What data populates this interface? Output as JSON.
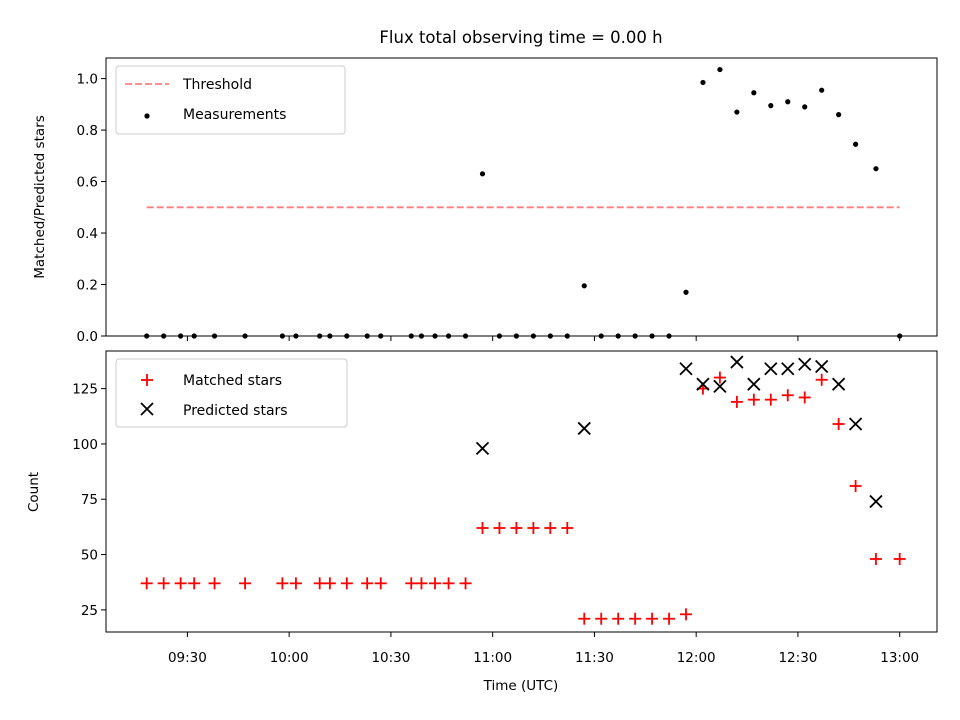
{
  "chart_data": [
    {
      "type": "scatter",
      "title": "Flux total observing time = 0.00 h",
      "xlabel": "",
      "ylabel": "Matched/Predicted stars",
      "ylim": [
        0,
        1.08
      ],
      "y_ticks": [
        "0.0",
        "0.2",
        "0.4",
        "0.6",
        "0.8",
        "1.0"
      ],
      "y_tick_values": [
        0.0,
        0.2,
        0.4,
        0.6,
        0.8,
        1.0
      ],
      "legend_position": "top-left",
      "legend": [
        "Threshold",
        "Measurements"
      ],
      "series": [
        {
          "name": "Threshold",
          "mark": "dashed-line",
          "color": "#ff7f7f",
          "points": [
            [
              "09:18",
              0.5
            ],
            [
              "13:00",
              0.5
            ]
          ]
        },
        {
          "name": "Measurements",
          "mark": "dot",
          "color": "#000000",
          "points": [
            [
              "09:18",
              0
            ],
            [
              "09:23",
              0
            ],
            [
              "09:28",
              0
            ],
            [
              "09:32",
              0
            ],
            [
              "09:38",
              0
            ],
            [
              "09:47",
              0
            ],
            [
              "09:58",
              0
            ],
            [
              "10:02",
              0
            ],
            [
              "10:09",
              0
            ],
            [
              "10:12",
              0
            ],
            [
              "10:17",
              0
            ],
            [
              "10:23",
              0
            ],
            [
              "10:27",
              0
            ],
            [
              "10:36",
              0
            ],
            [
              "10:39",
              0
            ],
            [
              "10:43",
              0
            ],
            [
              "10:47",
              0
            ],
            [
              "10:52",
              0
            ],
            [
              "10:57",
              0.63
            ],
            [
              "11:02",
              0
            ],
            [
              "11:07",
              0
            ],
            [
              "11:12",
              0
            ],
            [
              "11:17",
              0
            ],
            [
              "11:22",
              0
            ],
            [
              "11:27",
              0.195
            ],
            [
              "11:32",
              0
            ],
            [
              "11:37",
              0
            ],
            [
              "11:42",
              0
            ],
            [
              "11:47",
              0
            ],
            [
              "11:52",
              0
            ],
            [
              "11:57",
              0.17
            ],
            [
              "12:02",
              0.985
            ],
            [
              "12:07",
              1.035
            ],
            [
              "12:12",
              0.87
            ],
            [
              "12:17",
              0.945
            ],
            [
              "12:22",
              0.895
            ],
            [
              "12:27",
              0.91
            ],
            [
              "12:32",
              0.89
            ],
            [
              "12:37",
              0.955
            ],
            [
              "12:42",
              0.86
            ],
            [
              "12:47",
              0.745
            ],
            [
              "12:53",
              0.65
            ],
            [
              "13:00",
              0
            ]
          ]
        }
      ]
    },
    {
      "type": "scatter",
      "title": "",
      "xlabel": "Time (UTC)",
      "ylabel": "Count",
      "ylim": [
        15,
        142
      ],
      "y_ticks": [
        "25",
        "50",
        "75",
        "100",
        "125"
      ],
      "y_tick_values": [
        25,
        50,
        75,
        100,
        125
      ],
      "x_ticks": [
        "09:30",
        "10:00",
        "10:30",
        "11:00",
        "11:30",
        "12:00",
        "12:30",
        "13:00"
      ],
      "xlim": [
        "09:06",
        "13:11"
      ],
      "legend_position": "top-left",
      "legend": [
        "Matched stars",
        "Predicted stars"
      ],
      "series": [
        {
          "name": "Matched stars",
          "mark": "plus",
          "color": "#ff0000",
          "points": [
            [
              "09:18",
              37
            ],
            [
              "09:23",
              37
            ],
            [
              "09:28",
              37
            ],
            [
              "09:32",
              37
            ],
            [
              "09:38",
              37
            ],
            [
              "09:47",
              37
            ],
            [
              "09:58",
              37
            ],
            [
              "10:02",
              37
            ],
            [
              "10:09",
              37
            ],
            [
              "10:12",
              37
            ],
            [
              "10:17",
              37
            ],
            [
              "10:23",
              37
            ],
            [
              "10:27",
              37
            ],
            [
              "10:36",
              37
            ],
            [
              "10:39",
              37
            ],
            [
              "10:43",
              37
            ],
            [
              "10:47",
              37
            ],
            [
              "10:52",
              37
            ],
            [
              "10:57",
              62
            ],
            [
              "11:02",
              62
            ],
            [
              "11:07",
              62
            ],
            [
              "11:12",
              62
            ],
            [
              "11:17",
              62
            ],
            [
              "11:22",
              62
            ],
            [
              "11:27",
              21
            ],
            [
              "11:32",
              21
            ],
            [
              "11:37",
              21
            ],
            [
              "11:42",
              21
            ],
            [
              "11:47",
              21
            ],
            [
              "11:52",
              21
            ],
            [
              "11:57",
              23
            ],
            [
              "12:02",
              125
            ],
            [
              "12:07",
              130
            ],
            [
              "12:12",
              119
            ],
            [
              "12:17",
              120
            ],
            [
              "12:22",
              120
            ],
            [
              "12:27",
              122
            ],
            [
              "12:32",
              121
            ],
            [
              "12:37",
              129
            ],
            [
              "12:42",
              109
            ],
            [
              "12:47",
              81
            ],
            [
              "12:53",
              48
            ],
            [
              "13:00",
              48
            ]
          ]
        },
        {
          "name": "Predicted stars",
          "mark": "x",
          "color": "#000000",
          "points": [
            [
              "10:57",
              98
            ],
            [
              "11:27",
              107
            ],
            [
              "11:57",
              134
            ],
            [
              "12:02",
              127
            ],
            [
              "12:07",
              126
            ],
            [
              "12:12",
              137
            ],
            [
              "12:17",
              127
            ],
            [
              "12:22",
              134
            ],
            [
              "12:27",
              134
            ],
            [
              "12:32",
              136
            ],
            [
              "12:37",
              135
            ],
            [
              "12:42",
              127
            ],
            [
              "12:47",
              109
            ],
            [
              "12:53",
              74
            ]
          ]
        }
      ]
    }
  ]
}
